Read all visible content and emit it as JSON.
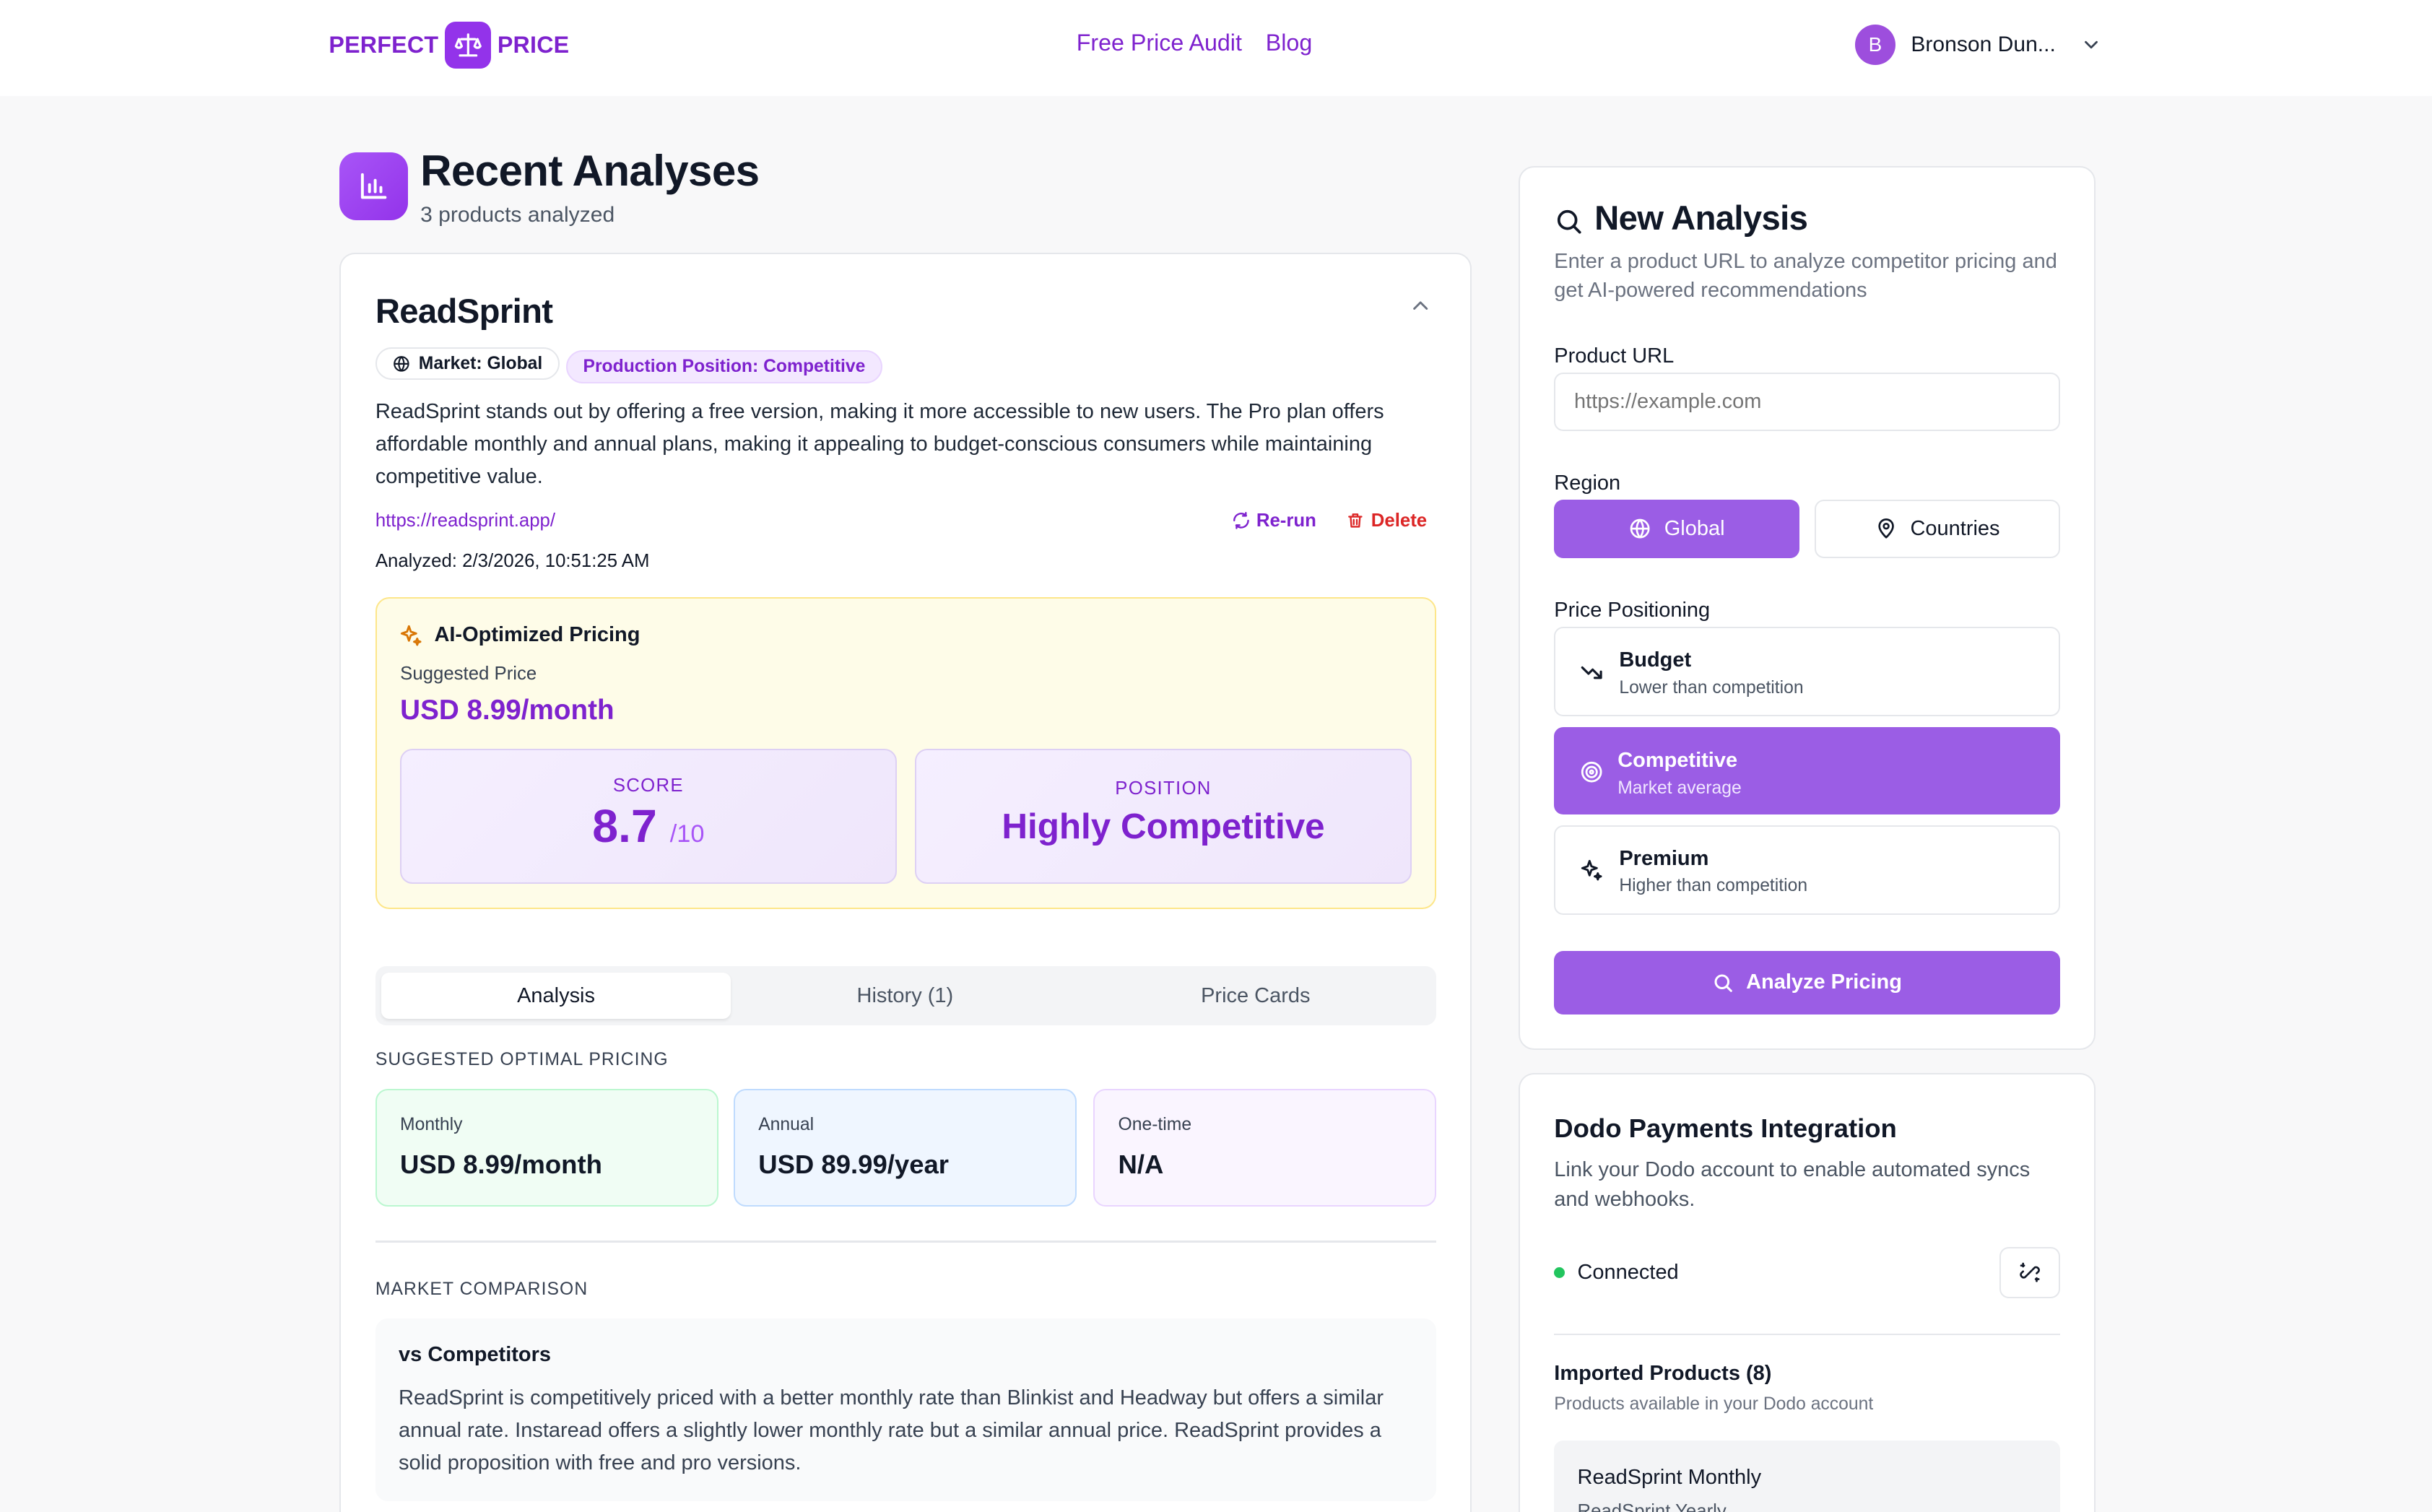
{
  "header": {
    "logo_left": "PERFECT",
    "logo_right": "PRICE",
    "nav": [
      "Free Price Audit",
      "Blog"
    ],
    "user_initial": "B",
    "user_name": "Bronson Dun..."
  },
  "recent": {
    "title": "Recent Analyses",
    "subtitle": "3 products analyzed"
  },
  "product": {
    "name": "ReadSprint",
    "market_chip": "Market: Global",
    "position_chip": "Production Position: Competitive",
    "description": "ReadSprint stands out by offering a free version, making it more accessible to new users. The Pro plan offers affordable monthly and annual plans, making it appealing to budget-conscious consumers while maintaining competitive value.",
    "url": "https://readsprint.app/",
    "rerun_label": "Re-run",
    "delete_label": "Delete",
    "analyzed": "Analyzed: 2/3/2026, 10:51:25 AM"
  },
  "ai_pricing": {
    "title": "AI-Optimized Pricing",
    "suggested_label": "Suggested Price",
    "suggested_price": "USD 8.99/month",
    "score_label": "SCORE",
    "score_value": "8.7",
    "score_max": "/10",
    "position_label": "POSITION",
    "position_value": "Highly Competitive"
  },
  "tabs": [
    "Analysis",
    "History (1)",
    "Price Cards"
  ],
  "optimal": {
    "heading": "SUGGESTED OPTIMAL PRICING",
    "cards": [
      {
        "label": "Monthly",
        "value": "USD 8.99/month"
      },
      {
        "label": "Annual",
        "value": "USD 89.99/year"
      },
      {
        "label": "One-time",
        "value": "N/A"
      }
    ]
  },
  "market": {
    "heading": "MARKET COMPARISON",
    "title": "vs Competitors",
    "text": "ReadSprint is competitively priced with a better monthly rate than Blinkist and Headway but offers a similar annual rate. Instaread offers a slightly lower monthly rate but a similar annual price. ReadSprint provides a solid proposition with free and pro versions."
  },
  "new_analysis": {
    "title": "New Analysis",
    "subtitle": "Enter a product URL to analyze competitor pricing and get AI-powered recommendations",
    "url_label": "Product URL",
    "url_placeholder": "https://example.com",
    "region_label": "Region",
    "region_global": "Global",
    "region_countries": "Countries",
    "positioning_label": "Price Positioning",
    "options": [
      {
        "title": "Budget",
        "subtitle": "Lower than competition"
      },
      {
        "title": "Competitive",
        "subtitle": "Market average"
      },
      {
        "title": "Premium",
        "subtitle": "Higher than competition"
      }
    ],
    "analyze_button": "Analyze Pricing"
  },
  "dodo": {
    "title": "Dodo Payments Integration",
    "subtitle": "Link your Dodo account to enable automated syncs and webhooks.",
    "status": "Connected",
    "imported_title": "Imported Products (8)",
    "imported_subtitle": "Products available in your Dodo account",
    "items": [
      "ReadSprint Monthly",
      "ReadSprint Yearly"
    ]
  },
  "colors": {
    "accent": "#9333ea",
    "accent_text": "#7e22ce",
    "selected_bg": "#9b5de5",
    "delete": "#dc2626",
    "connected": "#22c55e"
  }
}
